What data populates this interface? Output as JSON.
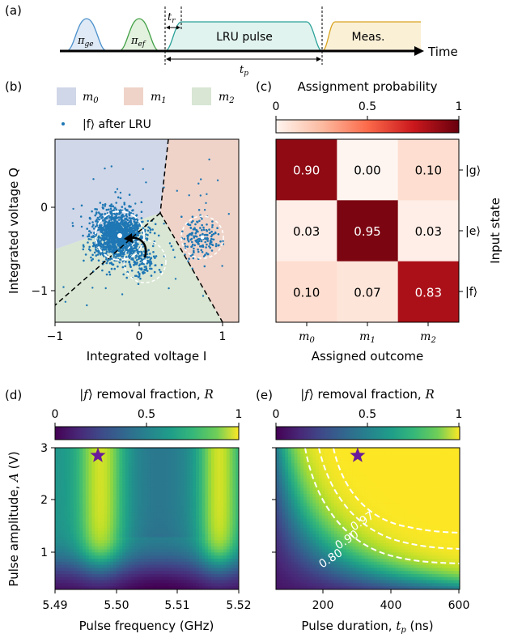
{
  "chart_data": [
    {
      "panel": "(a)",
      "type": "diagram",
      "pulses": [
        {
          "label": "πge",
          "color": "#4a8fcb",
          "fill": "#dfeaf6"
        },
        {
          "label": "πef",
          "color": "#43a047",
          "fill": "#e3f2df"
        },
        {
          "label": "LRU pulse",
          "color": "#2aa198",
          "fill": "#e0f3ef"
        },
        {
          "label": "Meas.",
          "color": "#d9a520",
          "fill": "#faf0d6"
        }
      ],
      "labels": {
        "tr": "tr",
        "tp": "tp",
        "time": "Time"
      }
    },
    {
      "panel": "(b)",
      "type": "scatter",
      "xlabel": "Integrated voltage I",
      "ylabel": "Integrated voltage Q",
      "xlim": [
        -1,
        1.2
      ],
      "ylim": [
        -1.4,
        0.8
      ],
      "xticks": [
        "−1",
        "0",
        "1"
      ],
      "yticks": [
        "0",
        "−1"
      ],
      "legend": {
        "regions": [
          {
            "label": "m0",
            "color": "#d0d7e8"
          },
          {
            "label": "m1",
            "color": "#efd3c8"
          },
          {
            "label": "m2",
            "color": "#d8e6d3"
          }
        ],
        "scatter": "|f⟩ after LRU",
        "point_color": "#1f77b4"
      },
      "clusters": [
        {
          "center": [
            -0.25,
            -0.35
          ],
          "radius": 0.28,
          "n": 1400
        },
        {
          "center": [
            0.72,
            -0.38
          ],
          "radius": 0.2,
          "n": 160
        },
        {
          "center": [
            0.05,
            -0.68
          ],
          "radius": 0.17,
          "n": 110
        }
      ]
    },
    {
      "panel": "(c)",
      "type": "heatmap",
      "title": "Assignment probability",
      "colorbar_ticks": [
        "0",
        "0.5",
        "1"
      ],
      "xlabel": "Assigned outcome",
      "ylabel": "Input state",
      "columns": [
        "m0",
        "m1",
        "m2"
      ],
      "rows": [
        "|g⟩",
        "|e⟩",
        "|f⟩"
      ],
      "values": [
        [
          0.9,
          0.0,
          0.1
        ],
        [
          0.03,
          0.95,
          0.03
        ],
        [
          0.1,
          0.07,
          0.83
        ]
      ],
      "cell_text": [
        [
          "0.90",
          "0.00",
          "0.10"
        ],
        [
          "0.03",
          "0.95",
          "0.03"
        ],
        [
          "0.10",
          "0.07",
          "0.83"
        ]
      ]
    },
    {
      "panel": "(d)",
      "type": "heatmap",
      "colorbar_title": "|f⟩ removal fraction, R",
      "colorbar_ticks": [
        "0",
        "0.5",
        "1"
      ],
      "xlabel": "Pulse frequency (GHz)",
      "ylabel": "Pulse amplitude, A (V)",
      "xlim": [
        5.49,
        5.52
      ],
      "ylim": [
        0.3,
        3.0
      ],
      "xticks": [
        "5.49",
        "5.50",
        "5.51",
        "5.52"
      ],
      "yticks": [
        "1",
        "2",
        "3"
      ],
      "star": [
        5.497,
        2.85
      ]
    },
    {
      "panel": "(e)",
      "type": "heatmap",
      "colorbar_title": "|f⟩ removal fraction, R",
      "colorbar_ticks": [
        "0",
        "0.5",
        "1"
      ],
      "xlabel": "Pulse duration, tp (ns)",
      "xlim": [
        60,
        600
      ],
      "ylim": [
        0.3,
        3.0
      ],
      "xticks": [
        "200",
        "400",
        "600"
      ],
      "yticks": [
        "1",
        "2",
        "3"
      ],
      "contours": [
        "0.80",
        "0.90",
        "0.97"
      ],
      "star": [
        300,
        2.85
      ]
    }
  ]
}
